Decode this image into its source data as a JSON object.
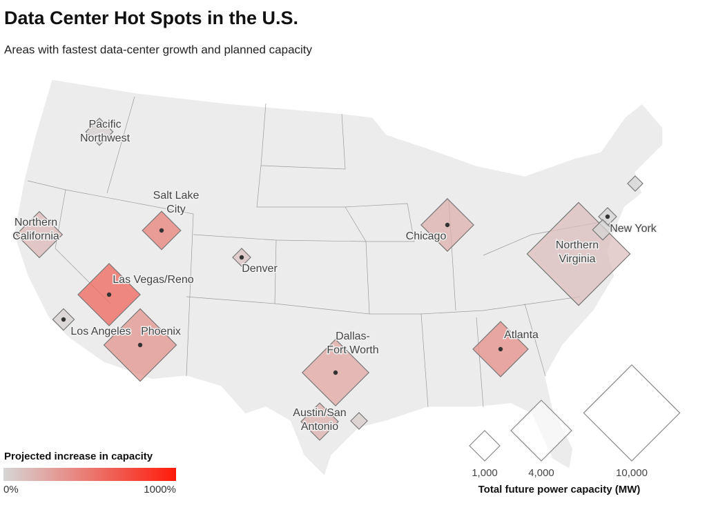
{
  "title": "Data Center Hot Spots in the U.S.",
  "subtitle": "Areas with fastest data-center growth and planned capacity",
  "locations": [
    {
      "label": [
        "Pacific",
        "Northwest"
      ],
      "capacity_mw": 800,
      "increase_pct": 30
    },
    {
      "label": [
        "Northern",
        "California"
      ],
      "capacity_mw": 2300,
      "increase_pct": 150
    },
    {
      "label": [
        "Salt Lake",
        "City"
      ],
      "capacity_mw": 1600,
      "increase_pct": 450
    },
    {
      "label": [
        "Denver"
      ],
      "capacity_mw": 350,
      "increase_pct": 100
    },
    {
      "label": [
        "Las Vegas/Reno"
      ],
      "capacity_mw": 4200,
      "increase_pct": 600
    },
    {
      "label": [
        "Los Angeles"
      ],
      "capacity_mw": 500,
      "increase_pct": 20
    },
    {
      "label": [
        "Phoenix"
      ],
      "capacity_mw": 5700,
      "increase_pct": 350
    },
    {
      "label": [
        "Dallas-",
        "Fort Worth"
      ],
      "capacity_mw": 4800,
      "increase_pct": 250
    },
    {
      "label": [
        "Austin/San",
        "Antonio"
      ],
      "capacity_mw": 1500,
      "increase_pct": 200
    },
    {
      "label": null,
      "capacity_mw": 300,
      "increase_pct": 50
    },
    {
      "label": [
        "Chicago"
      ],
      "capacity_mw": 3000,
      "increase_pct": 200
    },
    {
      "label": [
        "Atlanta"
      ],
      "capacity_mw": 3300,
      "increase_pct": 380
    },
    {
      "label": [
        "Northern",
        "Virginia"
      ],
      "capacity_mw": 11500,
      "increase_pct": 120
    },
    {
      "label": [
        "New York"
      ],
      "capacity_mw": 350,
      "increase_pct": 0
    },
    {
      "label": null,
      "capacity_mw": 450,
      "increase_pct": 10
    },
    {
      "label": null,
      "capacity_mw": 250,
      "increase_pct": 0
    }
  ],
  "color_legend": {
    "title": "Projected increase in capacity",
    "ticks": [
      {
        "value": 0,
        "label": "0%"
      },
      {
        "value": 1000,
        "label": "1000%"
      }
    ]
  },
  "size_legend": {
    "title": "Total future power capacity (MW)",
    "ticks": [
      {
        "value": 1000,
        "label": "1,000"
      },
      {
        "value": 4000,
        "label": "4,000"
      },
      {
        "value": 10000,
        "label": "10,000"
      }
    ]
  }
}
